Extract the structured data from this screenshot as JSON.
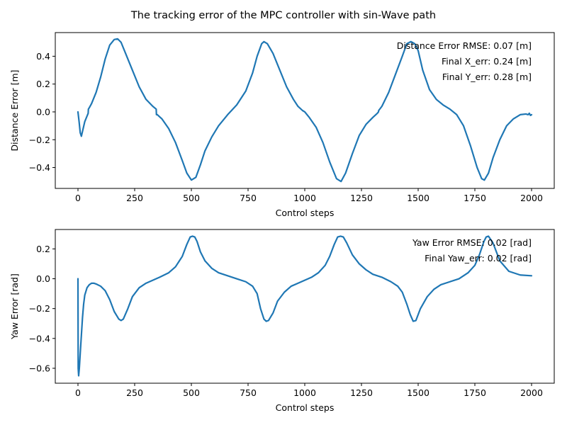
{
  "figure_title": "The tracking error of the MPC controller with sin-Wave path",
  "colors": {
    "series": "#1f77b4"
  },
  "chart_data": [
    {
      "type": "line",
      "title": "",
      "xlabel": "Control steps",
      "ylabel": "Distance Error [m]",
      "xlim": [
        -100,
        2100
      ],
      "ylim": [
        -0.55,
        0.57
      ],
      "xticks": [
        0,
        250,
        500,
        750,
        1000,
        1250,
        1500,
        1750,
        2000
      ],
      "xtick_labels": [
        "0",
        "250",
        "500",
        "750",
        "1000",
        "1250",
        "1500",
        "1750",
        "2000"
      ],
      "yticks": [
        -0.4,
        -0.2,
        0.0,
        0.2,
        0.4
      ],
      "ytick_labels": [
        "−0.4",
        "−0.2",
        "0.0",
        "0.2",
        "0.4"
      ],
      "grid": false,
      "annotations": [
        "Distance Error RMSE: 0.07 [m]",
        "Final X_err: 0.24 [m]",
        "Final Y_err: 0.28 [m]"
      ],
      "series": [
        {
          "x": [
            0,
            5,
            10,
            15,
            20,
            30,
            40,
            45,
            46,
            50,
            60,
            80,
            100,
            120,
            140,
            160,
            175,
            190,
            210,
            240,
            270,
            300,
            330,
            345,
            346,
            350,
            370,
            400,
            430,
            460,
            480,
            500,
            520,
            540,
            560,
            590,
            620,
            660,
            700,
            740,
            770,
            790,
            810,
            820,
            835,
            860,
            890,
            920,
            950,
            970,
            990,
            1000,
            1020,
            1050,
            1080,
            1110,
            1140,
            1160,
            1180,
            1210,
            1240,
            1270,
            1300,
            1320,
            1325,
            1326,
            1340,
            1370,
            1400,
            1430,
            1450,
            1468,
            1485,
            1500,
            1520,
            1550,
            1580,
            1610,
            1640,
            1670,
            1700,
            1730,
            1760,
            1780,
            1792,
            1810,
            1830,
            1860,
            1890,
            1920,
            1950,
            1975,
            1985,
            1990,
            1995,
            2000
          ],
          "y": [
            0.0,
            -0.07,
            -0.15,
            -0.175,
            -0.14,
            -0.07,
            -0.03,
            -0.01,
            0.02,
            0.03,
            0.06,
            0.14,
            0.25,
            0.38,
            0.48,
            0.52,
            0.525,
            0.5,
            0.42,
            0.3,
            0.18,
            0.09,
            0.04,
            0.02,
            -0.02,
            -0.02,
            -0.05,
            -0.12,
            -0.22,
            -0.35,
            -0.44,
            -0.49,
            -0.47,
            -0.38,
            -0.28,
            -0.18,
            -0.1,
            -0.02,
            0.05,
            0.15,
            0.28,
            0.4,
            0.49,
            0.505,
            0.49,
            0.42,
            0.3,
            0.18,
            0.09,
            0.04,
            0.01,
            0.0,
            -0.04,
            -0.11,
            -0.22,
            -0.36,
            -0.48,
            -0.5,
            -0.44,
            -0.3,
            -0.17,
            -0.09,
            -0.04,
            -0.01,
            0.0,
            0.01,
            0.04,
            0.14,
            0.27,
            0.4,
            0.49,
            0.505,
            0.49,
            0.44,
            0.3,
            0.16,
            0.09,
            0.05,
            0.02,
            -0.02,
            -0.1,
            -0.24,
            -0.4,
            -0.48,
            -0.49,
            -0.44,
            -0.33,
            -0.2,
            -0.1,
            -0.05,
            -0.02,
            -0.015,
            -0.02,
            -0.01,
            -0.025,
            -0.02
          ]
        }
      ]
    },
    {
      "type": "line",
      "title": "",
      "xlabel": "Control steps",
      "ylabel": "Yaw Error [rad]",
      "xlim": [
        -100,
        2100
      ],
      "ylim": [
        -0.7,
        0.33
      ],
      "xticks": [
        0,
        250,
        500,
        750,
        1000,
        1250,
        1500,
        1750,
        2000
      ],
      "xtick_labels": [
        "0",
        "250",
        "500",
        "750",
        "1000",
        "1250",
        "1500",
        "1750",
        "2000"
      ],
      "yticks": [
        -0.6,
        -0.4,
        -0.2,
        0.0,
        0.2
      ],
      "ytick_labels": [
        "−0.6",
        "−0.4",
        "−0.2",
        "0.0",
        "0.2"
      ],
      "grid": false,
      "annotations": [
        "Yaw Error RMSE: 0.02 [rad]",
        "Final Yaw_err: 0.02 [rad]"
      ],
      "series": [
        {
          "x": [
            0,
            1,
            3,
            6,
            10,
            15,
            20,
            25,
            30,
            40,
            50,
            60,
            70,
            80,
            100,
            120,
            140,
            160,
            180,
            190,
            200,
            220,
            240,
            270,
            300,
            330,
            360,
            400,
            430,
            460,
            480,
            495,
            505,
            515,
            525,
            540,
            560,
            590,
            620,
            660,
            700,
            740,
            770,
            790,
            805,
            820,
            830,
            840,
            860,
            880,
            910,
            940,
            970,
            1000,
            1030,
            1060,
            1090,
            1110,
            1130,
            1145,
            1158,
            1170,
            1185,
            1210,
            1240,
            1270,
            1300,
            1340,
            1380,
            1410,
            1430,
            1450,
            1465,
            1478,
            1490,
            1510,
            1540,
            1570,
            1600,
            1640,
            1680,
            1720,
            1750,
            1770,
            1790,
            1800,
            1810,
            1830,
            1860,
            1900,
            1950,
            2000
          ],
          "y": [
            0.0,
            -0.6,
            -0.65,
            -0.6,
            -0.5,
            -0.38,
            -0.26,
            -0.17,
            -0.11,
            -0.06,
            -0.04,
            -0.03,
            -0.03,
            -0.035,
            -0.05,
            -0.08,
            -0.14,
            -0.22,
            -0.27,
            -0.28,
            -0.27,
            -0.2,
            -0.12,
            -0.06,
            -0.03,
            -0.01,
            0.01,
            0.04,
            0.08,
            0.15,
            0.23,
            0.28,
            0.285,
            0.28,
            0.25,
            0.18,
            0.12,
            0.07,
            0.04,
            0.02,
            0.0,
            -0.02,
            -0.05,
            -0.1,
            -0.2,
            -0.27,
            -0.285,
            -0.28,
            -0.23,
            -0.15,
            -0.09,
            -0.05,
            -0.03,
            -0.01,
            0.01,
            0.04,
            0.09,
            0.15,
            0.23,
            0.28,
            0.285,
            0.28,
            0.24,
            0.16,
            0.1,
            0.06,
            0.03,
            0.01,
            -0.02,
            -0.05,
            -0.09,
            -0.17,
            -0.24,
            -0.285,
            -0.28,
            -0.2,
            -0.12,
            -0.07,
            -0.04,
            -0.02,
            0.0,
            0.04,
            0.09,
            0.16,
            0.25,
            0.28,
            0.285,
            0.24,
            0.12,
            0.05,
            0.025,
            0.02
          ]
        }
      ]
    }
  ]
}
